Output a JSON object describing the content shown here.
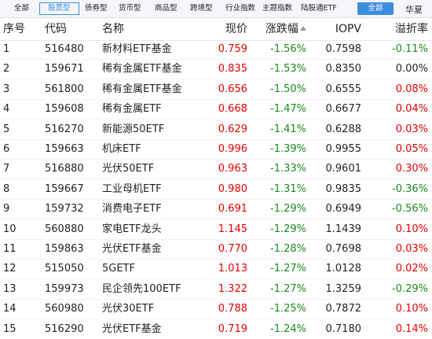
{
  "tabs": [
    "全部",
    "股票型",
    "债券型",
    "货币型",
    "商品型",
    "跨境型",
    "行业指数",
    "主题指数",
    "陆股通ETF"
  ],
  "filter": {
    "button": "全部",
    "next": "华夏"
  },
  "table": {
    "columns": [
      "序号",
      "代码",
      "名称",
      "现价",
      "涨跌幅",
      "IOPV",
      "溢折率"
    ],
    "rows": [
      [
        "1",
        "516480",
        "新材料ETF基金",
        "0.759",
        "-1.56%",
        "0.7598",
        "-0.11%"
      ],
      [
        "2",
        "159671",
        "稀有金属ETF基金",
        "0.835",
        "-1.53%",
        "0.8350",
        "0.00%"
      ],
      [
        "3",
        "561800",
        "稀有金属ETF基金",
        "0.656",
        "-1.50%",
        "0.6555",
        "0.08%"
      ],
      [
        "4",
        "159608",
        "稀有金属ETF",
        "0.668",
        "-1.47%",
        "0.6677",
        "0.04%"
      ],
      [
        "5",
        "516270",
        "新能源50ETF",
        "0.629",
        "-1.41%",
        "0.6288",
        "0.03%"
      ],
      [
        "6",
        "159663",
        "机床ETF",
        "0.996",
        "-1.39%",
        "0.9955",
        "0.05%"
      ],
      [
        "7",
        "516880",
        "光伏50ETF",
        "0.963",
        "-1.33%",
        "0.9601",
        "0.30%"
      ],
      [
        "8",
        "159667",
        "工业母机ETF",
        "0.980",
        "-1.31%",
        "0.9835",
        "-0.36%"
      ],
      [
        "9",
        "159732",
        "消费电子ETF",
        "0.691",
        "-1.29%",
        "0.6949",
        "-0.56%"
      ],
      [
        "10",
        "560880",
        "家电ETF龙头",
        "1.145",
        "-1.29%",
        "1.1439",
        "0.10%"
      ],
      [
        "11",
        "159863",
        "光伏ETF基金",
        "0.770",
        "-1.28%",
        "0.7698",
        "0.03%"
      ],
      [
        "12",
        "515050",
        "5GETF",
        "1.013",
        "-1.27%",
        "1.0128",
        "0.02%"
      ],
      [
        "13",
        "159973",
        "民企领先100ETF",
        "1.322",
        "-1.27%",
        "1.3259",
        "-0.29%"
      ],
      [
        "14",
        "560980",
        "光伏30ETF",
        "0.788",
        "-1.25%",
        "0.7872",
        "0.10%"
      ],
      [
        "15",
        "516290",
        "光伏ETF基金",
        "0.719",
        "-1.24%",
        "0.7180",
        "0.14%"
      ]
    ]
  }
}
